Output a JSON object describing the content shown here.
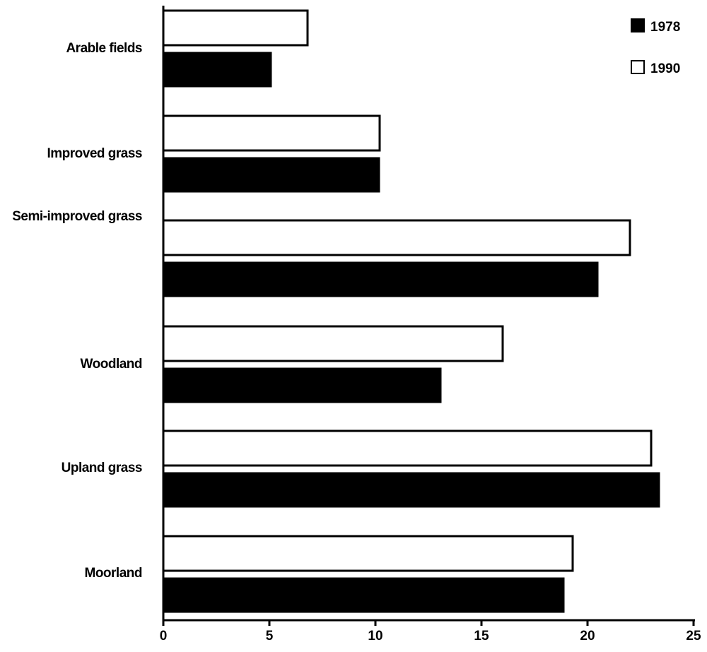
{
  "chart_data": {
    "type": "bar",
    "orientation": "horizontal",
    "title": "",
    "xlabel": "",
    "ylabel": "",
    "categories": [
      "Arable fields",
      "Improved grass",
      "Semi-improved grass",
      "Woodland",
      "Upland grass",
      "Moorland"
    ],
    "series": [
      {
        "name": "1978",
        "color": "#000000",
        "values": [
          5.1,
          10.2,
          20.5,
          13.1,
          23.4,
          18.9
        ]
      },
      {
        "name": "1990",
        "color": "#ffffff",
        "values": [
          6.8,
          10.2,
          22.0,
          16.0,
          23.0,
          19.3
        ]
      }
    ],
    "xlim": [
      0,
      25
    ],
    "x_ticks": [
      "0",
      "5",
      "10",
      "15",
      "20",
      "25"
    ],
    "grid": false,
    "legend_position": "top-right"
  }
}
